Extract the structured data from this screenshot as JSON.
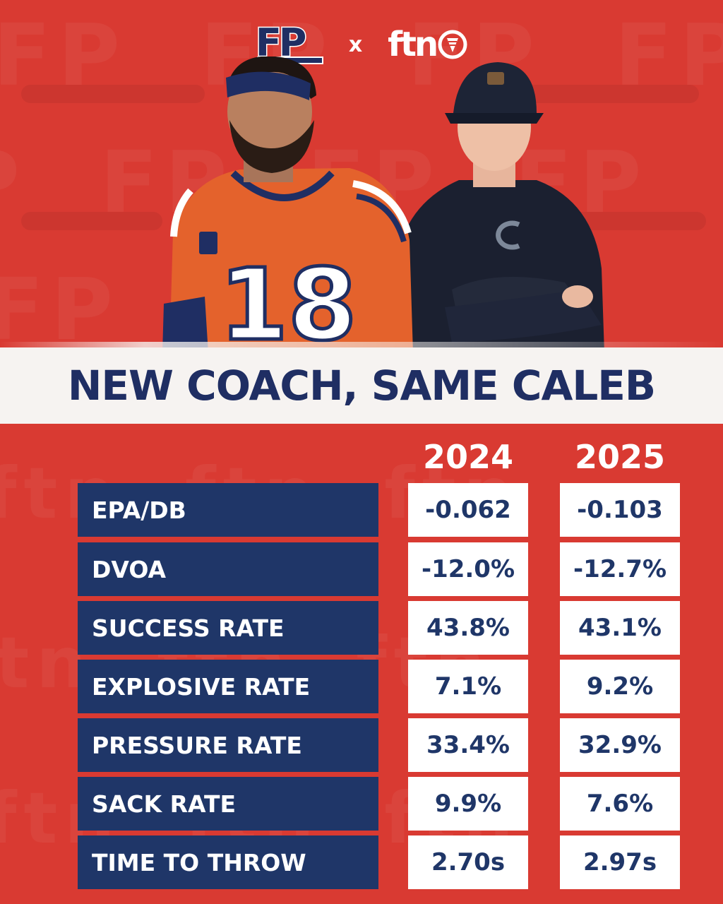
{
  "header": {
    "brand_left": "FP",
    "separator": "x",
    "brand_right": "ftn"
  },
  "headline": "NEW COACH, SAME CALEB",
  "table": {
    "columns": [
      "2024",
      "2025"
    ],
    "rows": [
      {
        "label": "EPA/DB",
        "v2024": "-0.062",
        "v2025": "-0.103"
      },
      {
        "label": "DVOA",
        "v2024": "-12.0%",
        "v2025": "-12.7%"
      },
      {
        "label": "SUCCESS RATE",
        "v2024": "43.8%",
        "v2025": "43.1%"
      },
      {
        "label": "EXPLOSIVE RATE",
        "v2024": "7.1%",
        "v2025": "9.2%"
      },
      {
        "label": "PRESSURE RATE",
        "v2024": "33.4%",
        "v2025": "32.9%"
      },
      {
        "label": "SACK RATE",
        "v2024": "9.9%",
        "v2025": "7.6%"
      },
      {
        "label": "TIME TO THROW",
        "v2024": "2.70s",
        "v2025": "2.97s"
      }
    ]
  },
  "photo": {
    "jersey_number": "18",
    "icons": [
      "quarterback-figure",
      "coach-figure"
    ]
  },
  "colors": {
    "background": "#d93a32",
    "navy": "#1f3668",
    "banner": "#f6f3f1",
    "jersey_orange": "#e4622c"
  }
}
